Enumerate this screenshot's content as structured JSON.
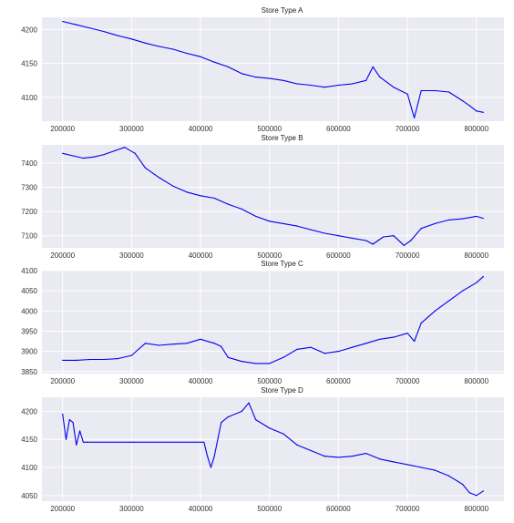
{
  "chart_data": [
    {
      "type": "line",
      "title": "Store Type A",
      "xlabel": "",
      "ylabel": "",
      "xlim": [
        170000,
        840000
      ],
      "ylim": [
        4065,
        4218
      ],
      "xticks": [
        200000,
        300000,
        400000,
        500000,
        600000,
        700000,
        800000
      ],
      "xtick_labels": [
        "200000",
        "300000",
        "400000",
        "500000",
        "600000",
        "700000",
        "800000"
      ],
      "yticks": [
        4100,
        4150,
        4200
      ],
      "ytick_labels": [
        "4100",
        "4150",
        "4200"
      ],
      "grid": true,
      "series_color": "#0000ee",
      "x": [
        200000,
        220000,
        240000,
        260000,
        280000,
        300000,
        320000,
        340000,
        360000,
        380000,
        400000,
        420000,
        440000,
        460000,
        480000,
        500000,
        520000,
        540000,
        560000,
        580000,
        600000,
        620000,
        640000,
        650000,
        660000,
        680000,
        700000,
        710000,
        720000,
        740000,
        760000,
        780000,
        790000,
        800000,
        810000
      ],
      "y": [
        4212,
        4207,
        4202,
        4197,
        4191,
        4186,
        4180,
        4175,
        4171,
        4165,
        4160,
        4152,
        4145,
        4135,
        4130,
        4128,
        4125,
        4120,
        4118,
        4115,
        4118,
        4120,
        4125,
        4145,
        4130,
        4115,
        4105,
        4070,
        4110,
        4110,
        4108,
        4095,
        4088,
        4080,
        4078
      ]
    },
    {
      "type": "line",
      "title": "Store Type B",
      "xlabel": "",
      "ylabel": "",
      "xlim": [
        170000,
        840000
      ],
      "ylim": [
        7050,
        7475
      ],
      "xticks": [
        200000,
        300000,
        400000,
        500000,
        600000,
        700000,
        800000
      ],
      "xtick_labels": [
        "200000",
        "300000",
        "400000",
        "500000",
        "600000",
        "700000",
        "800000"
      ],
      "yticks": [
        7100,
        7200,
        7300,
        7400
      ],
      "ytick_labels": [
        "7100",
        "7200",
        "7300",
        "7400"
      ],
      "grid": true,
      "series_color": "#0000ee",
      "x": [
        200000,
        215000,
        230000,
        245000,
        260000,
        275000,
        290000,
        305000,
        320000,
        340000,
        360000,
        380000,
        400000,
        420000,
        440000,
        460000,
        480000,
        500000,
        520000,
        540000,
        560000,
        580000,
        600000,
        620000,
        640000,
        650000,
        665000,
        680000,
        695000,
        705000,
        720000,
        740000,
        760000,
        780000,
        800000,
        810000
      ],
      "y": [
        7440,
        7430,
        7420,
        7425,
        7435,
        7450,
        7465,
        7440,
        7380,
        7340,
        7305,
        7280,
        7265,
        7255,
        7230,
        7210,
        7180,
        7160,
        7150,
        7140,
        7125,
        7110,
        7100,
        7090,
        7080,
        7065,
        7095,
        7100,
        7060,
        7080,
        7130,
        7150,
        7165,
        7170,
        7180,
        7172
      ]
    },
    {
      "type": "line",
      "title": "Store Type C",
      "xlabel": "",
      "ylabel": "",
      "xlim": [
        170000,
        840000
      ],
      "ylim": [
        3845,
        4100
      ],
      "xticks": [
        200000,
        300000,
        400000,
        500000,
        600000,
        700000,
        800000
      ],
      "xtick_labels": [
        "200000",
        "300000",
        "400000",
        "500000",
        "600000",
        "700000",
        "800000"
      ],
      "yticks": [
        3850,
        3900,
        3950,
        4000,
        4050,
        4100
      ],
      "ytick_labels": [
        "3850",
        "3900",
        "3950",
        "4000",
        "4050",
        "4100"
      ],
      "grid": true,
      "series_color": "#0000ee",
      "x": [
        200000,
        220000,
        240000,
        260000,
        280000,
        300000,
        310000,
        320000,
        340000,
        360000,
        380000,
        400000,
        420000,
        430000,
        440000,
        460000,
        480000,
        500000,
        520000,
        540000,
        560000,
        580000,
        600000,
        620000,
        640000,
        660000,
        680000,
        700000,
        710000,
        720000,
        740000,
        760000,
        780000,
        800000,
        810000
      ],
      "y": [
        3878,
        3878,
        3880,
        3880,
        3882,
        3890,
        3905,
        3920,
        3915,
        3918,
        3920,
        3930,
        3920,
        3912,
        3885,
        3875,
        3870,
        3870,
        3885,
        3905,
        3910,
        3895,
        3900,
        3910,
        3920,
        3930,
        3935,
        3945,
        3925,
        3970,
        4000,
        4025,
        4050,
        4070,
        4085
      ]
    },
    {
      "type": "line",
      "title": "Store Type D",
      "xlabel": "",
      "ylabel": "",
      "xlim": [
        170000,
        840000
      ],
      "ylim": [
        4040,
        4225
      ],
      "xticks": [
        200000,
        300000,
        400000,
        500000,
        600000,
        700000,
        800000
      ],
      "xtick_labels": [
        "200000",
        "300000",
        "400000",
        "500000",
        "600000",
        "700000",
        "800000"
      ],
      "yticks": [
        4050,
        4100,
        4150,
        4200
      ],
      "ytick_labels": [
        "4050",
        "4100",
        "4150",
        "4200"
      ],
      "grid": true,
      "series_color": "#0000ee",
      "x": [
        200000,
        205000,
        210000,
        215000,
        220000,
        225000,
        230000,
        235000,
        300000,
        405000,
        410000,
        415000,
        420000,
        430000,
        440000,
        460000,
        470000,
        480000,
        500000,
        520000,
        540000,
        560000,
        580000,
        600000,
        620000,
        640000,
        660000,
        680000,
        700000,
        720000,
        740000,
        760000,
        780000,
        790000,
        800000,
        810000
      ],
      "y": [
        4195,
        4150,
        4185,
        4180,
        4140,
        4165,
        4145,
        4145,
        4145,
        4145,
        4120,
        4100,
        4120,
        4180,
        4190,
        4200,
        4215,
        4185,
        4170,
        4160,
        4140,
        4130,
        4120,
        4118,
        4120,
        4125,
        4115,
        4110,
        4105,
        4100,
        4095,
        4085,
        4070,
        4055,
        4050,
        4058
      ]
    }
  ]
}
